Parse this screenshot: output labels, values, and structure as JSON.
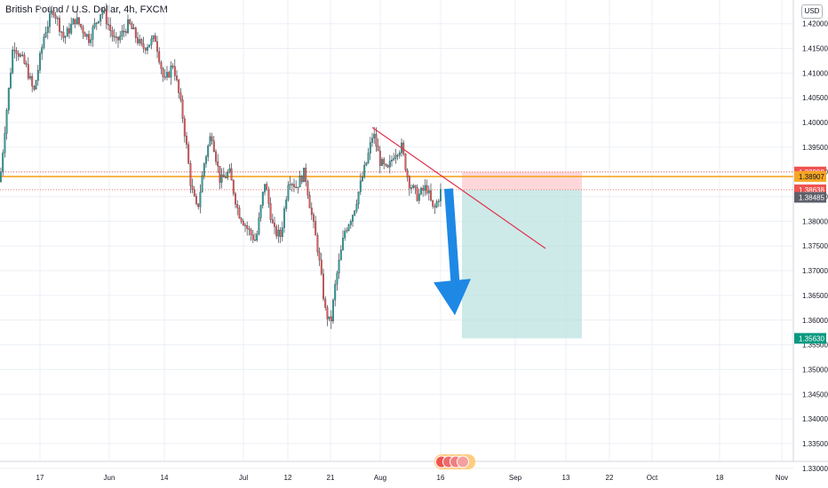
{
  "header": {
    "title": "British Pound / U.S. Dollar, 4h, FXCM",
    "currency": "USD"
  },
  "colors": {
    "up": "#26a69a",
    "down": "#ef5350",
    "trendline": "#e0334c",
    "arrow": "#1e88e5",
    "level_orange": "#f5a623",
    "tp_zone": "#b2dfdb",
    "sl_zone": "#ffcdd2",
    "badge_red": "#ef5350",
    "badge_orange": "#f5a623",
    "badge_dark": "#5d606b",
    "badge_green": "#089981",
    "grid": "#eceff5"
  },
  "chart_data": {
    "type": "candlestick",
    "title": "British Pound / U.S. Dollar, 4h, FXCM",
    "ylim": [
      1.3296,
      1.4248
    ],
    "y_ticks": [
      "1.42000",
      "1.41500",
      "1.41000",
      "1.40500",
      "1.40000",
      "1.39500",
      "1.39000",
      "1.38500",
      "1.38000",
      "1.37500",
      "1.37000",
      "1.36500",
      "1.36000",
      "1.35500",
      "1.35000",
      "1.34500",
      "1.34000",
      "1.33500",
      "1.33000"
    ],
    "x_ticks": [
      "17",
      "Jun",
      "14",
      "Jul",
      "12",
      "21",
      "Aug",
      "16",
      "Sep",
      "13",
      "22",
      "Oct",
      "18",
      "Nov"
    ],
    "price_path": [
      [
        0,
        1.388
      ],
      [
        5,
        1.398
      ],
      [
        15,
        1.416
      ],
      [
        30,
        1.411
      ],
      [
        38,
        1.406
      ],
      [
        50,
        1.418
      ],
      [
        60,
        1.423
      ],
      [
        72,
        1.417
      ],
      [
        85,
        1.421
      ],
      [
        100,
        1.417
      ],
      [
        115,
        1.423
      ],
      [
        130,
        1.416
      ],
      [
        145,
        1.42
      ],
      [
        160,
        1.415
      ],
      [
        175,
        1.417
      ],
      [
        185,
        1.408
      ],
      [
        195,
        1.412
      ],
      [
        205,
        1.402
      ],
      [
        210,
        1.395
      ],
      [
        215,
        1.387
      ],
      [
        222,
        1.382
      ],
      [
        230,
        1.392
      ],
      [
        238,
        1.398
      ],
      [
        248,
        1.388
      ],
      [
        258,
        1.39
      ],
      [
        268,
        1.382
      ],
      [
        280,
        1.378
      ],
      [
        288,
        1.376
      ],
      [
        298,
        1.388
      ],
      [
        308,
        1.378
      ],
      [
        316,
        1.377
      ],
      [
        325,
        1.389
      ],
      [
        333,
        1.387
      ],
      [
        343,
        1.39
      ],
      [
        350,
        1.382
      ],
      [
        358,
        1.374
      ],
      [
        366,
        1.362
      ],
      [
        372,
        1.359
      ],
      [
        378,
        1.368
      ],
      [
        388,
        1.378
      ],
      [
        398,
        1.382
      ],
      [
        408,
        1.389
      ],
      [
        414,
        1.393
      ],
      [
        420,
        1.398
      ],
      [
        428,
        1.392
      ],
      [
        436,
        1.39
      ],
      [
        444,
        1.394
      ],
      [
        452,
        1.395
      ],
      [
        460,
        1.388
      ],
      [
        470,
        1.385
      ],
      [
        480,
        1.387
      ],
      [
        488,
        1.382
      ],
      [
        496,
        1.386
      ]
    ],
    "trendline": {
      "from": [
        419,
        1.399
      ],
      "to": [
        614,
        1.3745
      ]
    },
    "horizontal_levels": [
      {
        "price": 1.38907,
        "style": "solid"
      }
    ],
    "dotted_levels": [
      1.38999,
      1.38638
    ],
    "short_position": {
      "x_start": 520,
      "x_end": 655,
      "stop": 1.38999,
      "entry": 1.38638,
      "target": 1.3563
    },
    "arrow": {
      "from": [
        505,
        1.3866
      ],
      "to": [
        512,
        1.361
      ]
    },
    "price_badges": [
      {
        "label": "1.38999",
        "price": 1.38999,
        "style": "red"
      },
      {
        "label": "1.38907",
        "price": 1.38907,
        "style": "orange"
      },
      {
        "label": "1.38638",
        "price": 1.38638,
        "style": "red"
      },
      {
        "label": "1.38485",
        "price": 1.38485,
        "style": "dark"
      },
      {
        "label": "1.35630",
        "price": 1.3563,
        "style": "green"
      }
    ]
  }
}
